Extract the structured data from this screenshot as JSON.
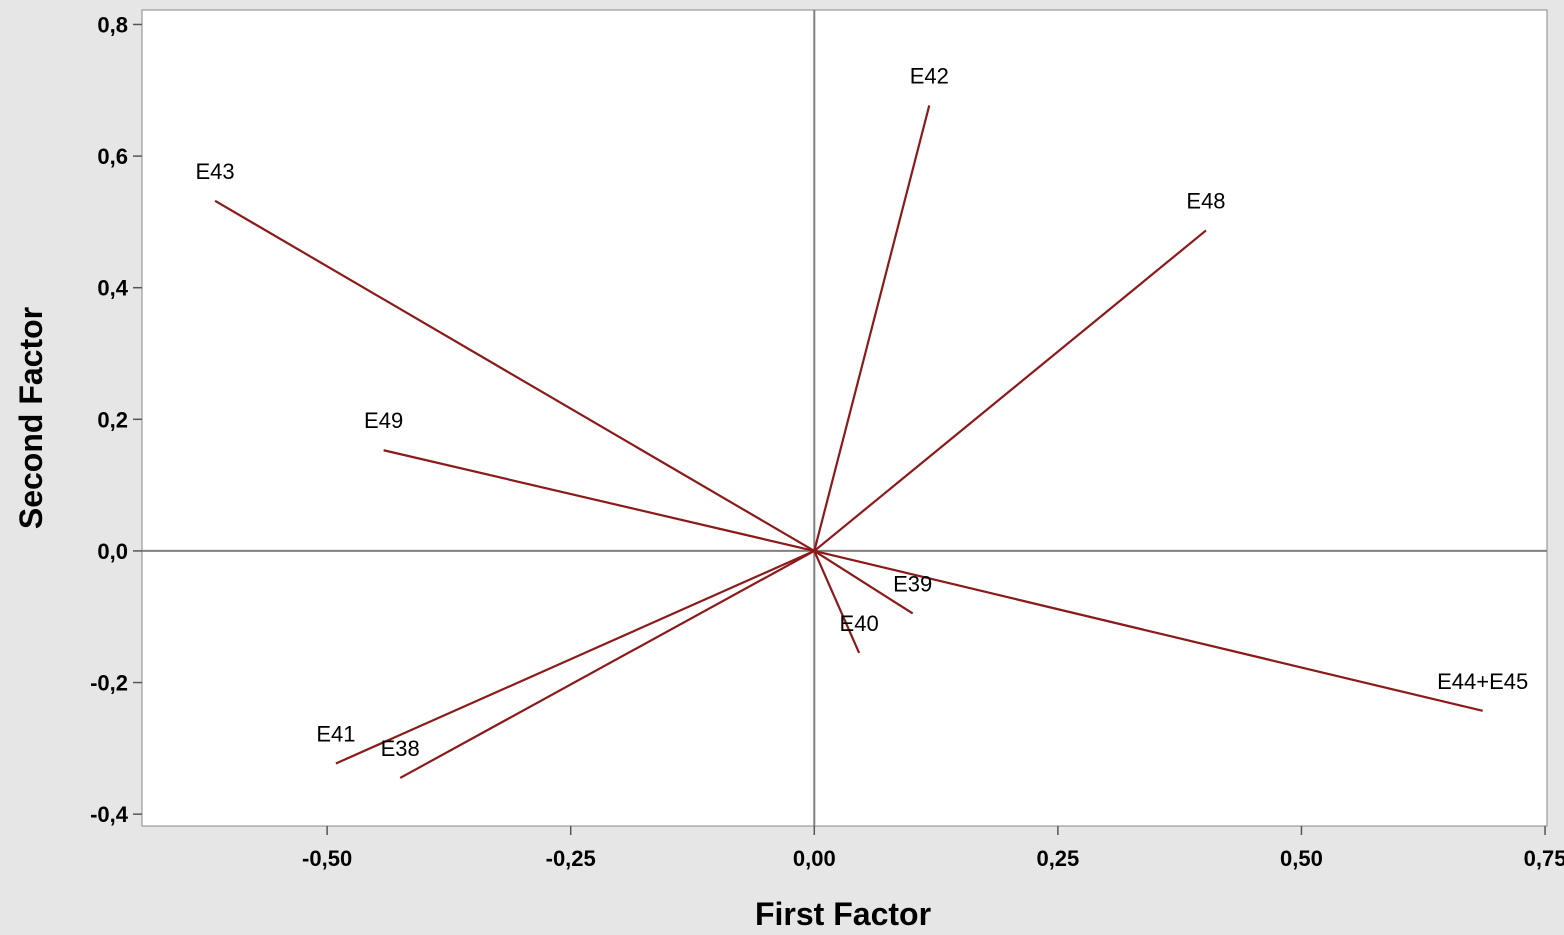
{
  "chart_data": {
    "type": "line",
    "title": "",
    "xlabel": "First Factor",
    "ylabel": "Second Factor",
    "xlim": [
      -0.69,
      0.752
    ],
    "ylim": [
      -0.418,
      0.822
    ],
    "x_ticks": [
      -0.5,
      -0.25,
      0.0,
      0.25,
      0.5,
      0.75
    ],
    "x_tick_labels": [
      "-0,50",
      "-0,25",
      "0,00",
      "0,25",
      "0,50",
      "0,75"
    ],
    "y_ticks": [
      -0.4,
      -0.2,
      0.0,
      0.2,
      0.4,
      0.6,
      0.8
    ],
    "y_tick_labels": [
      "-0,4",
      "-0,2",
      "0,0",
      "0,2",
      "0,4",
      "0,6",
      "0,8"
    ],
    "reference_lines": {
      "x": 0,
      "y": 0
    },
    "grid": false,
    "legend": "none",
    "line_color": "#8b1a1a",
    "axis_color": "#808080",
    "series": [
      {
        "name": "E42",
        "x": 0.118,
        "y": 0.677
      },
      {
        "name": "E43",
        "x": -0.615,
        "y": 0.532
      },
      {
        "name": "E48",
        "x": 0.402,
        "y": 0.487
      },
      {
        "name": "E49",
        "x": -0.442,
        "y": 0.153
      },
      {
        "name": "E39",
        "x": 0.101,
        "y": -0.095
      },
      {
        "name": "E40",
        "x": 0.046,
        "y": -0.155
      },
      {
        "name": "E44+E45",
        "x": 0.686,
        "y": -0.243
      },
      {
        "name": "E41",
        "x": -0.491,
        "y": -0.323
      },
      {
        "name": "E38",
        "x": -0.425,
        "y": -0.345
      }
    ]
  }
}
